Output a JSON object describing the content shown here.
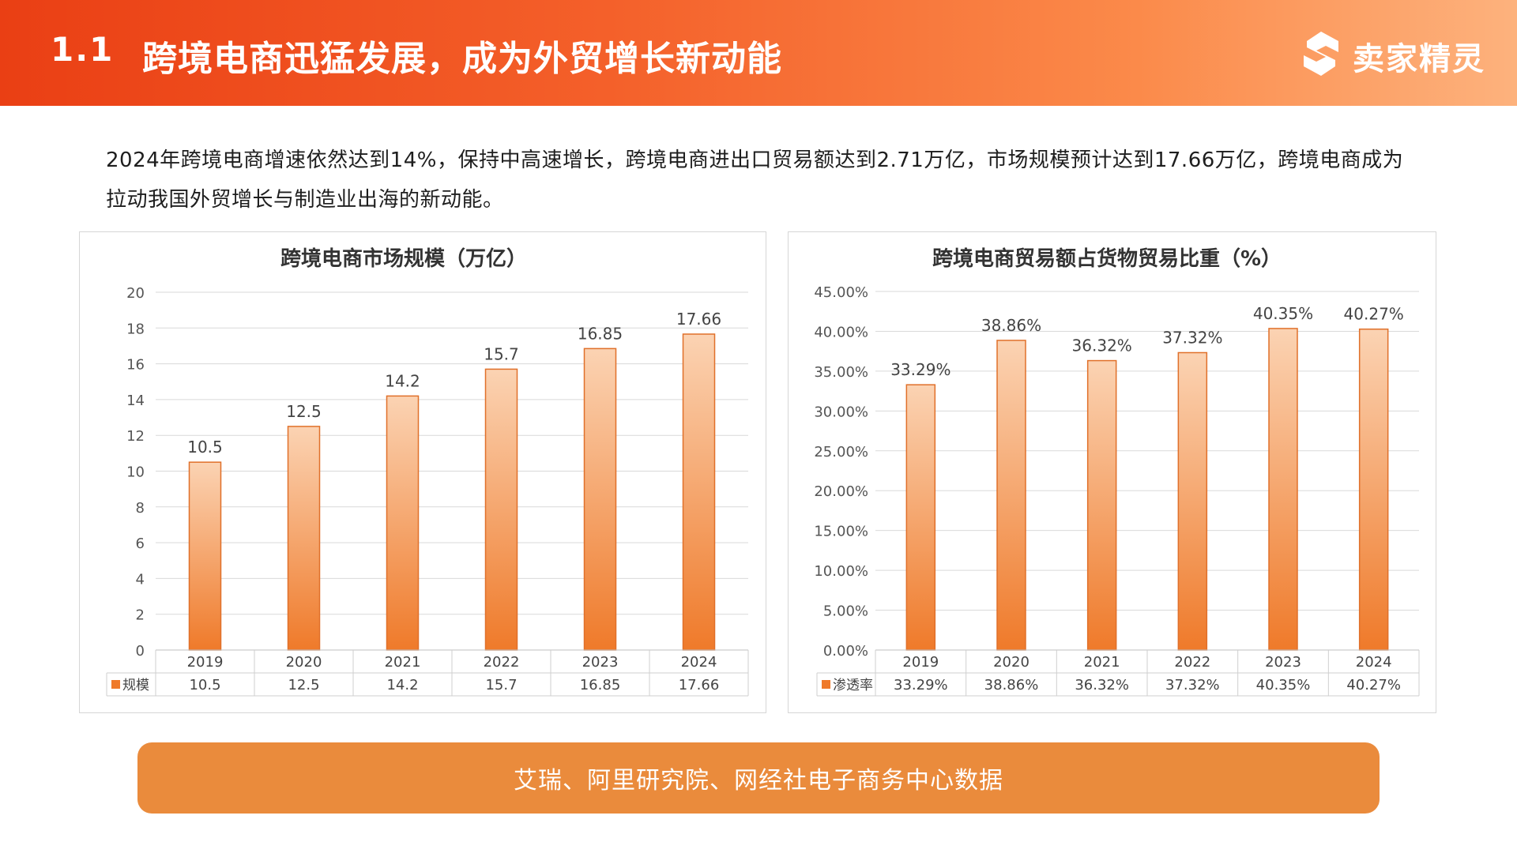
{
  "header": {
    "section_number": "1.1",
    "title": "跨境电商迅猛发展，成为外贸增长新动能",
    "logo_text": "卖家精灵"
  },
  "intro": {
    "text": "2024年跨境电商增速依然达到14%，保持中高速增长，跨境电商进出口贸易额达到2.71万亿，市场规模预计达到17.66万亿，跨境电商成为拉动我国外贸增长与制造业出海的新动能。"
  },
  "source": {
    "text": "艾瑞、阿里研究院、网经社电子商务中心数据"
  },
  "colors": {
    "header_start": "#ea3f14",
    "header_end": "#fdb27d",
    "bar_top": "#fbd3b3",
    "bar_bottom": "#ef7a2a",
    "bar_stroke": "#e0702a",
    "source_bg": "#ea8b3c"
  },
  "chart_data": [
    {
      "type": "bar",
      "title": "跨境电商市场规模（万亿）",
      "categories": [
        "2019",
        "2020",
        "2021",
        "2022",
        "2023",
        "2024"
      ],
      "series": [
        {
          "name": "规模",
          "values": [
            10.5,
            12.5,
            14.2,
            15.7,
            16.85,
            17.66
          ],
          "labels": [
            "10.5",
            "12.5",
            "14.2",
            "15.7",
            "16.85",
            "17.66"
          ]
        }
      ],
      "ylim": [
        0,
        20
      ],
      "yticks": [
        0,
        2,
        4,
        6,
        8,
        10,
        12,
        14,
        16,
        18,
        20
      ],
      "ytick_labels": [
        "0",
        "2",
        "4",
        "6",
        "8",
        "10",
        "12",
        "14",
        "16",
        "18",
        "20"
      ],
      "grid": true,
      "data_table": true,
      "legend": "data table"
    },
    {
      "type": "bar",
      "title": "跨境电商贸易额占货物贸易比重（%）",
      "categories": [
        "2019",
        "2020",
        "2021",
        "2022",
        "2023",
        "2024"
      ],
      "series": [
        {
          "name": "渗透率",
          "values": [
            33.29,
            38.86,
            36.32,
            37.32,
            40.35,
            40.27
          ],
          "labels": [
            "33.29%",
            "38.86%",
            "36.32%",
            "37.32%",
            "40.35%",
            "40.27%"
          ]
        }
      ],
      "ylim": [
        0,
        45
      ],
      "yticks": [
        0,
        5,
        10,
        15,
        20,
        25,
        30,
        35,
        40,
        45
      ],
      "ytick_labels": [
        "0.00%",
        "5.00%",
        "10.00%",
        "15.00%",
        "20.00%",
        "25.00%",
        "30.00%",
        "35.00%",
        "40.00%",
        "45.00%"
      ],
      "grid": true,
      "data_table": true,
      "legend": "data table"
    }
  ]
}
